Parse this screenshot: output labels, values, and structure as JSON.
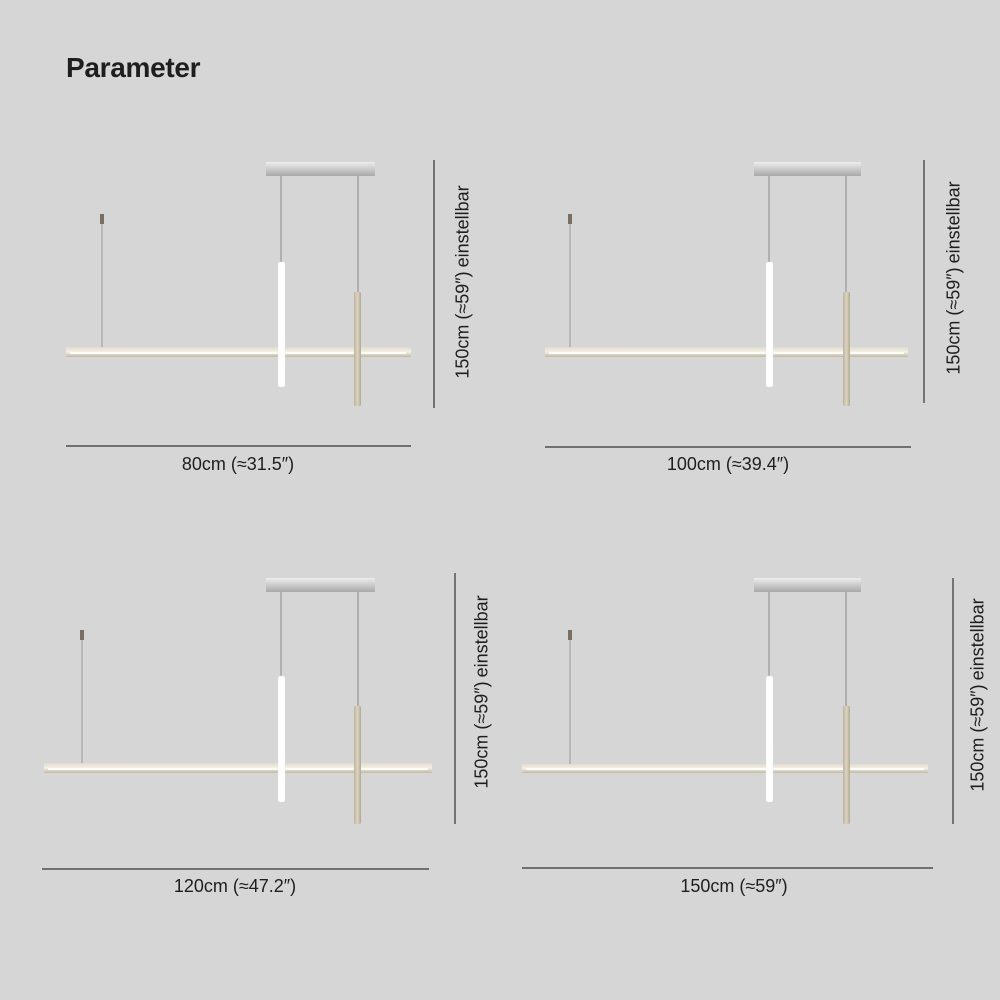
{
  "title": "Parameter",
  "variants": [
    {
      "width_label": "80cm (≈31.5″)",
      "height_label": "150cm (≈59″)",
      "adjustable_label": "einstellbar"
    },
    {
      "width_label": "100cm (≈39.4″)",
      "height_label": "150cm (≈59″)",
      "adjustable_label": "einstellbar"
    },
    {
      "width_label": "120cm (≈47.2″)",
      "height_label": "150cm (≈59″)",
      "adjustable_label": "einstellbar"
    },
    {
      "width_label": "150cm (≈59″)",
      "height_label": "150cm (≈59″)",
      "adjustable_label": "einstellbar"
    }
  ],
  "colors": {
    "background": "#d6d6d6",
    "lamp_bar": "#cfc6b3",
    "glow": "#ffffff",
    "canopy": "#b9b9b9",
    "line": "#333333"
  }
}
